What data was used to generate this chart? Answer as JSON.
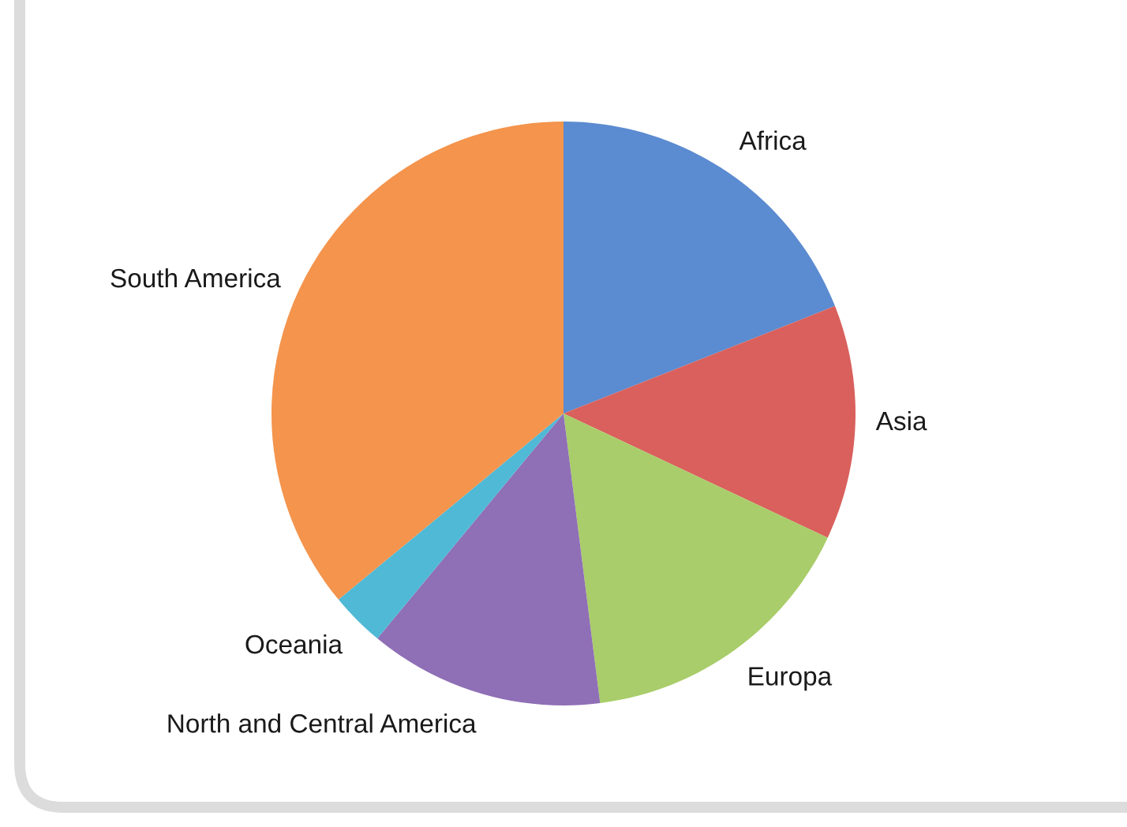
{
  "chart_data": {
    "type": "pie",
    "categories": [
      "Africa",
      "Asia",
      "Europa",
      "North and Central America",
      "Oceania",
      "South America"
    ],
    "values": [
      19,
      13,
      16,
      13,
      3,
      36
    ],
    "colors": [
      "#5b8bd0",
      "#d9605c",
      "#a9cd6a",
      "#8f6fb5",
      "#4fb9d6",
      "#f4944d"
    ]
  }
}
